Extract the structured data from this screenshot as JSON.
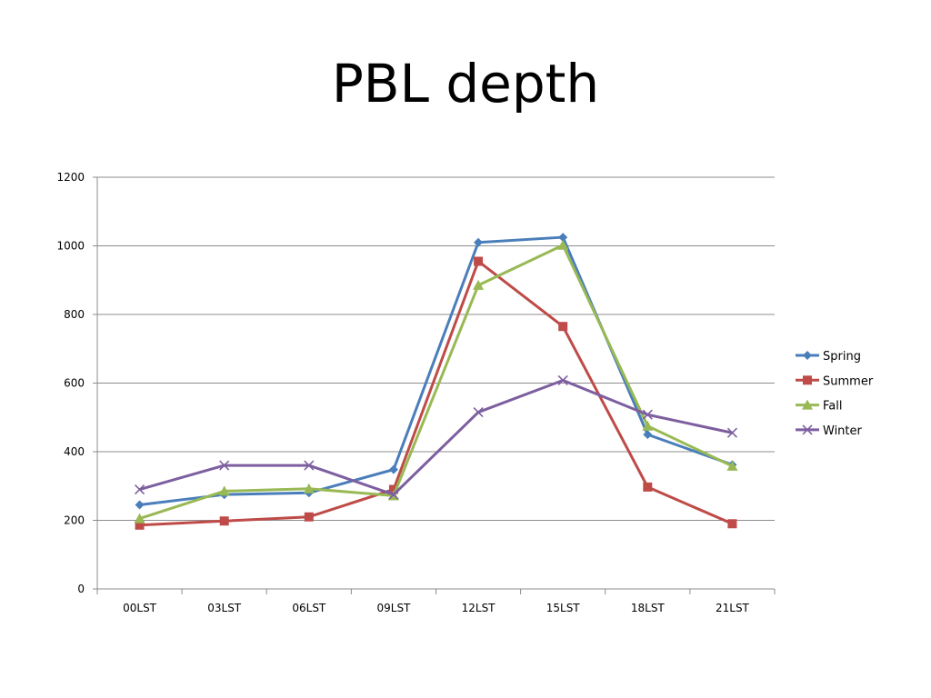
{
  "slide": {
    "title": "PBL depth"
  },
  "colors": {
    "Spring": "#4a7ebb",
    "Summer": "#be4b48",
    "Fall": "#98b954",
    "Winter": "#7d5fa0"
  },
  "chart_data": {
    "type": "line",
    "title": "PBL depth",
    "categories": [
      "00LST",
      "03LST",
      "06LST",
      "09LST",
      "12LST",
      "15LST",
      "18LST",
      "21LST"
    ],
    "ylim": [
      0,
      1200
    ],
    "yticks": [
      0,
      200,
      400,
      600,
      800,
      1000,
      1200
    ],
    "grid": true,
    "legend": "right",
    "series": [
      {
        "name": "Spring",
        "marker": "diamond",
        "values": [
          245,
          275,
          280,
          348,
          1010,
          1025,
          450,
          362
        ]
      },
      {
        "name": "Summer",
        "marker": "square",
        "values": [
          186,
          198,
          210,
          290,
          955,
          765,
          297,
          190
        ]
      },
      {
        "name": "Fall",
        "marker": "triangle",
        "values": [
          205,
          285,
          292,
          272,
          885,
          1002,
          475,
          358
        ]
      },
      {
        "name": "Winter",
        "marker": "x",
        "values": [
          290,
          360,
          360,
          275,
          515,
          608,
          508,
          455
        ]
      }
    ]
  }
}
